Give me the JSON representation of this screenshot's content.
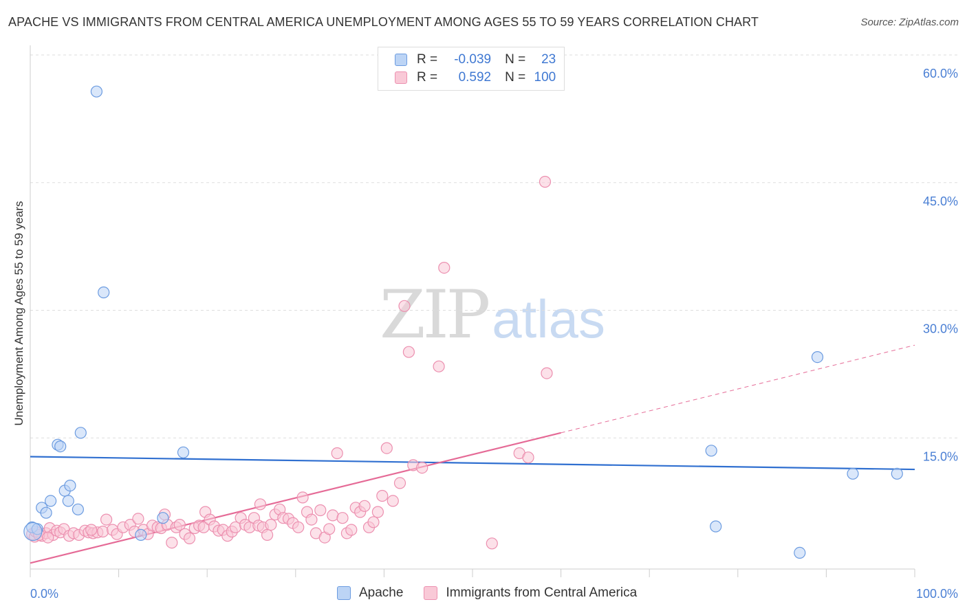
{
  "title": "APACHE VS IMMIGRANTS FROM CENTRAL AMERICA UNEMPLOYMENT AMONG AGES 55 TO 59 YEARS CORRELATION CHART",
  "source": "Source: ZipAtlas.com",
  "watermark": {
    "zip": "ZIP",
    "atlas": "atlas"
  },
  "colors": {
    "apache_fill": "#bcd4f5",
    "apache_stroke": "#6b9be0",
    "apache_line": "#2f6fd0",
    "imm_fill": "#f9c9d7",
    "imm_stroke": "#ec8faf",
    "imm_line": "#e56a96",
    "grid": "#dddddd",
    "tick_text": "#4a7fd4"
  },
  "legend": {
    "rows": [
      {
        "r_label": "R =",
        "r_value": "-0.039",
        "n_label": "N =",
        "n_value": "23"
      },
      {
        "r_label": "R =",
        "r_value": "0.592",
        "n_label": "N =",
        "n_value": "100"
      }
    ]
  },
  "bottom_legend": [
    "Apache",
    "Immigrants from Central America"
  ],
  "chart_data": {
    "type": "scatter",
    "title": "APACHE VS IMMIGRANTS FROM CENTRAL AMERICA UNEMPLOYMENT AMONG AGES 55 TO 59 YEARS CORRELATION CHART",
    "xlabel": "",
    "ylabel": "Unemployment Among Ages 55 to 59 years",
    "xlim": [
      0,
      100
    ],
    "ylim": [
      0,
      60
    ],
    "x_tick_labels": [
      "0.0%",
      "100.0%"
    ],
    "y_ticks": [
      15,
      30,
      45,
      60
    ],
    "y_tick_labels": [
      "15.0%",
      "30.0%",
      "45.0%",
      "60.0%"
    ],
    "grid": true,
    "series": [
      {
        "name": "Apache",
        "r": -0.039,
        "n": 23,
        "trend": {
          "x": [
            0,
            100
          ],
          "y": [
            12.8,
            11.3
          ]
        },
        "points": [
          [
            0.2,
            4.5
          ],
          [
            0.8,
            4.3
          ],
          [
            1.3,
            6.8
          ],
          [
            1.8,
            6.2
          ],
          [
            2.3,
            7.6
          ],
          [
            3.1,
            14.2
          ],
          [
            3.4,
            14.0
          ],
          [
            3.9,
            8.8
          ],
          [
            4.5,
            9.4
          ],
          [
            4.3,
            7.6
          ],
          [
            5.4,
            6.6
          ],
          [
            5.7,
            15.6
          ],
          [
            7.5,
            55.7
          ],
          [
            8.3,
            32.1
          ],
          [
            12.5,
            3.6
          ],
          [
            15.0,
            5.6
          ],
          [
            17.3,
            13.3
          ],
          [
            77.0,
            13.5
          ],
          [
            77.5,
            4.6
          ],
          [
            87.0,
            1.5
          ],
          [
            89.0,
            24.5
          ],
          [
            93.0,
            10.8
          ],
          [
            98.0,
            10.8
          ]
        ]
      },
      {
        "name": "Immigrants from Central America",
        "r": 0.592,
        "n": 100,
        "trend": {
          "x": [
            0,
            60
          ],
          "y": [
            0.3,
            15.6
          ],
          "dashed_extension": {
            "x": [
              60,
              100
            ],
            "y": [
              15.6,
              25.9
            ]
          }
        },
        "points": [
          [
            0.2,
            3.7
          ],
          [
            0.5,
            3.4
          ],
          [
            0.9,
            3.9
          ],
          [
            1.3,
            3.5
          ],
          [
            1.8,
            3.8
          ],
          [
            2.2,
            4.4
          ],
          [
            2.6,
            3.6
          ],
          [
            3.0,
            4.1
          ],
          [
            3.4,
            3.9
          ],
          [
            3.8,
            4.3
          ],
          [
            4.4,
            3.5
          ],
          [
            4.9,
            3.8
          ],
          [
            5.5,
            3.6
          ],
          [
            6.2,
            4.1
          ],
          [
            6.6,
            3.9
          ],
          [
            7.1,
            3.8
          ],
          [
            7.6,
            3.9
          ],
          [
            8.2,
            4.0
          ],
          [
            8.6,
            5.4
          ],
          [
            9.3,
            4.2
          ],
          [
            9.8,
            3.7
          ],
          [
            10.5,
            4.5
          ],
          [
            11.3,
            4.8
          ],
          [
            11.8,
            4.0
          ],
          [
            12.2,
            5.5
          ],
          [
            12.8,
            4.2
          ],
          [
            13.3,
            3.7
          ],
          [
            13.8,
            4.7
          ],
          [
            14.4,
            4.5
          ],
          [
            14.8,
            4.4
          ],
          [
            15.5,
            4.8
          ],
          [
            16.0,
            2.7
          ],
          [
            16.5,
            4.5
          ],
          [
            16.9,
            4.8
          ],
          [
            17.5,
            3.7
          ],
          [
            18.0,
            3.2
          ],
          [
            18.6,
            4.4
          ],
          [
            19.1,
            4.7
          ],
          [
            19.6,
            4.5
          ],
          [
            19.8,
            6.3
          ],
          [
            20.3,
            5.4
          ],
          [
            20.8,
            4.6
          ],
          [
            21.3,
            4.1
          ],
          [
            21.8,
            4.2
          ],
          [
            22.3,
            3.5
          ],
          [
            22.8,
            4.0
          ],
          [
            23.2,
            4.5
          ],
          [
            23.8,
            5.6
          ],
          [
            24.3,
            4.8
          ],
          [
            24.8,
            4.5
          ],
          [
            25.3,
            5.6
          ],
          [
            25.8,
            4.7
          ],
          [
            26.3,
            4.5
          ],
          [
            26.8,
            3.6
          ],
          [
            27.2,
            4.8
          ],
          [
            27.7,
            6.0
          ],
          [
            28.2,
            6.6
          ],
          [
            28.6,
            5.6
          ],
          [
            29.2,
            5.5
          ],
          [
            29.7,
            5.0
          ],
          [
            30.3,
            4.5
          ],
          [
            30.8,
            8.0
          ],
          [
            31.3,
            6.3
          ],
          [
            31.8,
            5.4
          ],
          [
            32.3,
            3.8
          ],
          [
            32.8,
            6.5
          ],
          [
            33.3,
            3.3
          ],
          [
            33.8,
            4.3
          ],
          [
            34.2,
            5.9
          ],
          [
            34.7,
            13.2
          ],
          [
            35.3,
            5.6
          ],
          [
            35.8,
            3.8
          ],
          [
            36.3,
            4.2
          ],
          [
            36.8,
            6.8
          ],
          [
            37.3,
            6.3
          ],
          [
            37.8,
            7.0
          ],
          [
            38.3,
            4.5
          ],
          [
            38.8,
            5.1
          ],
          [
            39.3,
            6.3
          ],
          [
            39.8,
            8.2
          ],
          [
            40.3,
            13.8
          ],
          [
            41.0,
            7.6
          ],
          [
            41.8,
            9.7
          ],
          [
            42.3,
            30.5
          ],
          [
            42.8,
            25.1
          ],
          [
            43.3,
            11.8
          ],
          [
            44.3,
            11.5
          ],
          [
            46.2,
            23.4
          ],
          [
            46.8,
            35.0
          ],
          [
            52.2,
            2.6
          ],
          [
            55.3,
            13.2
          ],
          [
            56.3,
            12.7
          ],
          [
            58.2,
            45.1
          ],
          [
            58.4,
            22.6
          ],
          [
            0.6,
            4.0
          ],
          [
            1.0,
            3.6
          ],
          [
            2.0,
            3.3
          ],
          [
            6.9,
            4.2
          ],
          [
            15.2,
            6.0
          ],
          [
            26.0,
            7.2
          ]
        ]
      }
    ]
  }
}
